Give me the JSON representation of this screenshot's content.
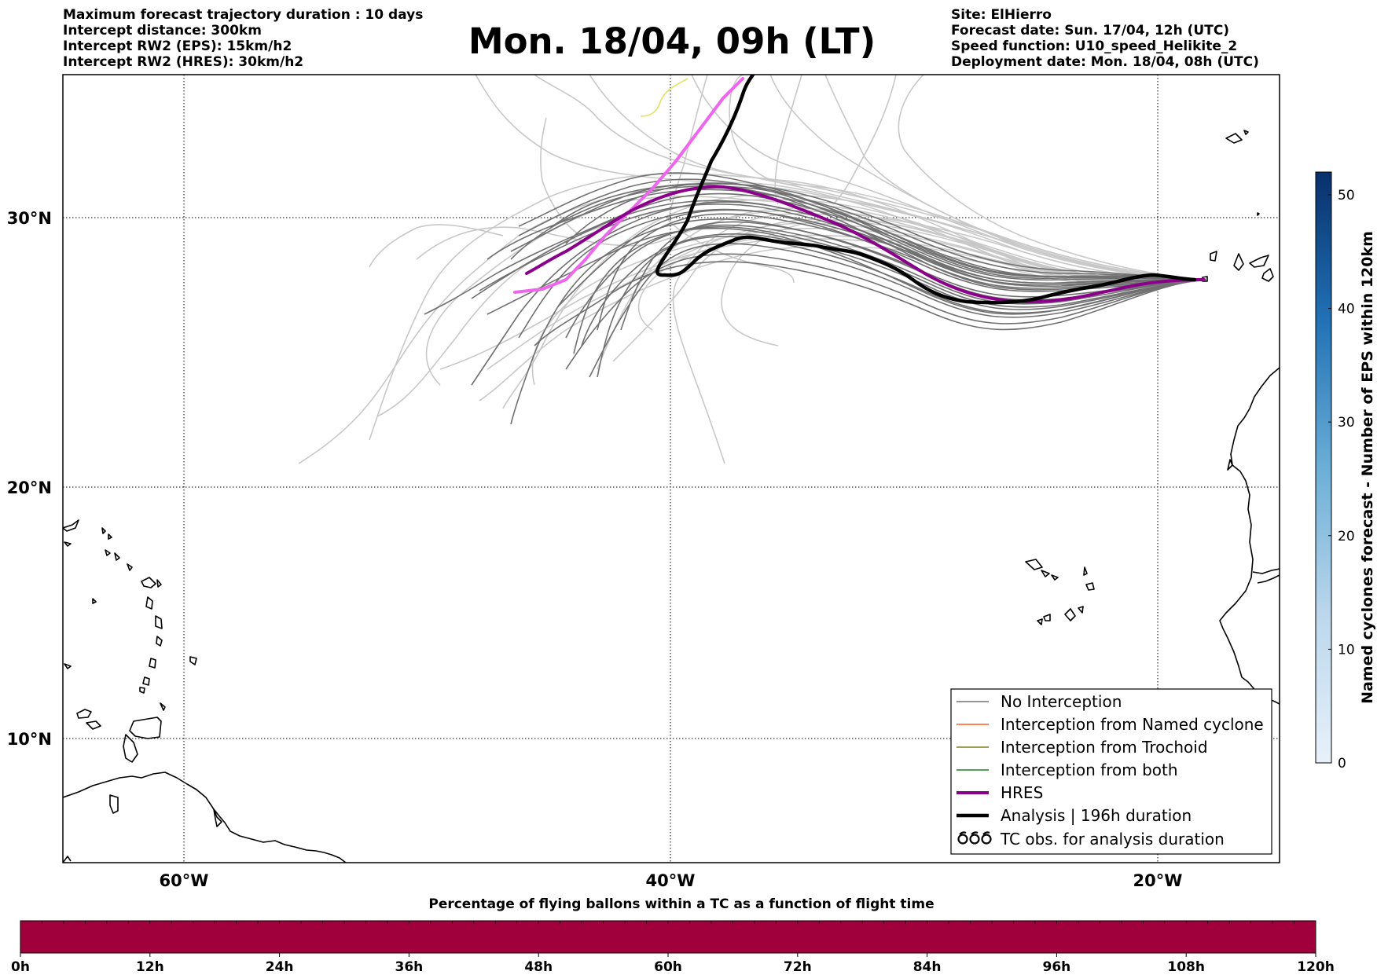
{
  "header": {
    "left": [
      "Maximum forecast trajectory duration : 10 days",
      "Intercept distance: 300km",
      "Intercept RW2 (EPS):  15km/h2",
      "Intercept RW2 (HRES): 30km/h2"
    ],
    "title": "Mon. 18/04, 09h (LT)",
    "right": [
      "Site: ElHierro",
      "Forecast date: Sun. 17/04, 12h (UTC)",
      "Speed function: U10_speed_Helikite_2",
      "Deployment date: Mon. 18/04, 08h (UTC)"
    ]
  },
  "map": {
    "lat_labels": [
      "30°N",
      "20°N",
      "10°N"
    ],
    "lon_labels": [
      "60°W",
      "40°W",
      "20°W"
    ],
    "colors": {
      "no_interception": "#707070",
      "eps_background": "#c8c8c8",
      "named_cyclone": "#ff5a1e",
      "trochoid": "#7f7f1e",
      "both": "#1e7f1e",
      "hres": "#8b008b",
      "hres_highlight": "#ee66ee",
      "analysis": "#000000"
    }
  },
  "legend": [
    {
      "label": "No Interception",
      "style": "thin",
      "color": "#707070"
    },
    {
      "label": "Interception from Named cyclone",
      "style": "thin",
      "color": "#ff5a1e"
    },
    {
      "label": "Interception from Trochoid",
      "style": "thin",
      "color": "#7f7f1e"
    },
    {
      "label": "Interception from both",
      "style": "thin",
      "color": "#1e7f1e"
    },
    {
      "label": "HRES",
      "style": "thick",
      "color": "#8b008b"
    },
    {
      "label": "Analysis | 196h duration",
      "style": "thick",
      "color": "#000000"
    },
    {
      "label": "TC obs. for analysis duration",
      "style": "symbol",
      "color": "#000000"
    }
  ],
  "right_colorbar": {
    "label": "Named cyclones forecast - Number of EPS within 120km",
    "ticks": [
      "0",
      "10",
      "20",
      "30",
      "40",
      "50"
    ],
    "min": 0,
    "max": 52,
    "color_low": "#e8f1fa",
    "color_high": "#08306b"
  },
  "bottom_bar": {
    "title": "Percentage of flying ballons within a TC as a function of flight time",
    "ticks": [
      "0h",
      "12h",
      "24h",
      "36h",
      "48h",
      "60h",
      "72h",
      "84h",
      "96h",
      "108h",
      "120h"
    ],
    "fill_color": "#a0003c"
  }
}
